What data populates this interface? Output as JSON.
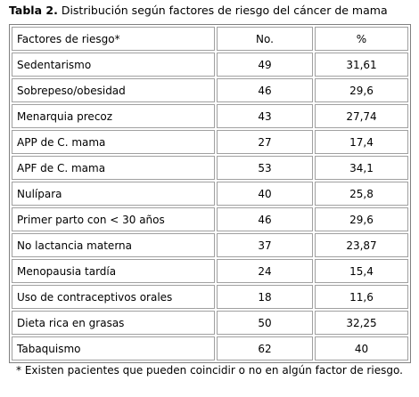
{
  "title": {
    "label": "Tabla 2.",
    "text": "Distribución según factores de riesgo del cáncer de mama"
  },
  "table": {
    "header": [
      "Factores de riesgo*",
      "No.",
      "%"
    ],
    "rows": [
      [
        "Sedentarismo",
        49,
        "31,61"
      ],
      [
        "Sobrepeso/obesidad",
        46,
        "29,6"
      ],
      [
        "Menarquia precoz",
        43,
        "27,74"
      ],
      [
        "APP de C. mama",
        27,
        "17,4"
      ],
      [
        "APF de C. mama",
        53,
        "34,1"
      ],
      [
        "Nulípara",
        40,
        "25,8"
      ],
      [
        "Primer parto con < 30 años",
        46,
        "29,6"
      ],
      [
        "No lactancia materna",
        37,
        "23,87"
      ],
      [
        "Menopausia tardía",
        24,
        "15,4"
      ],
      [
        "Uso de contraceptivos orales",
        18,
        "11,6"
      ],
      [
        "Dieta rica en grasas",
        50,
        "32,25"
      ],
      [
        "Tabaquismo",
        62,
        "40"
      ]
    ]
  },
  "footnote": "* Existen pacientes que pueden coincidir o no en algún factor de riesgo."
}
